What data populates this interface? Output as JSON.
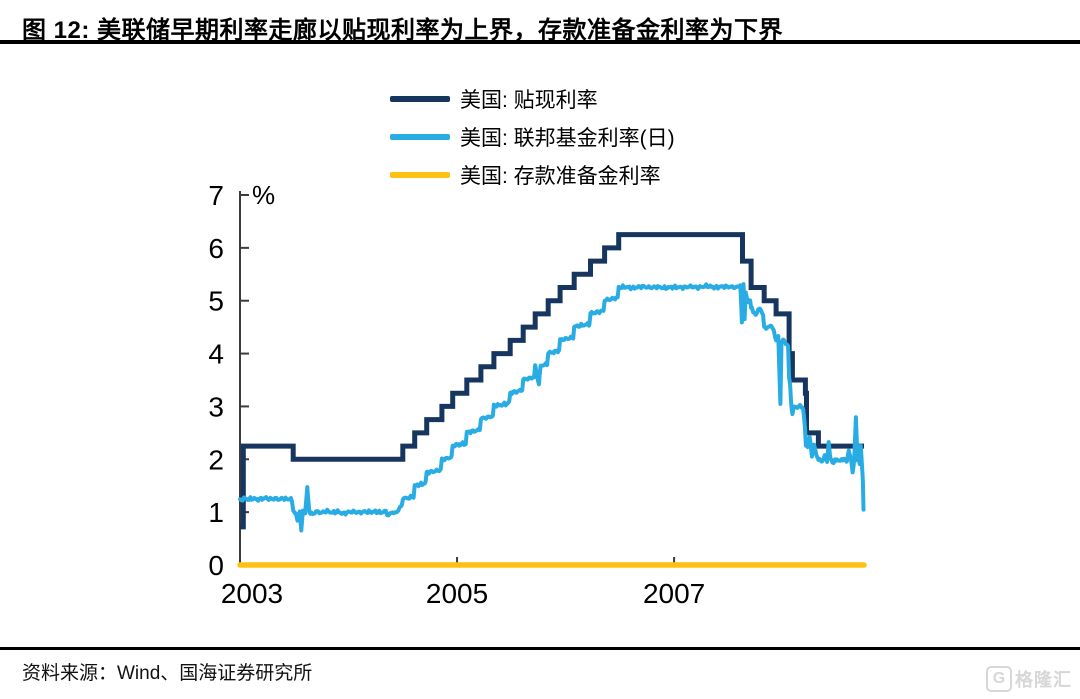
{
  "header": {
    "title": "图 12:  美联储早期利率走廊以贴现利率为上界，存款准备金利率为下界"
  },
  "legend": [
    {
      "label": "美国: 贴现利率",
      "color": "#17365f"
    },
    {
      "label": "美国: 联邦基金利率(日)",
      "color": "#29ace4"
    },
    {
      "label": "美国: 存款准备金利率",
      "color": "#fdc013"
    }
  ],
  "footer": {
    "source": "资料来源：Wind、国海证券研究所"
  },
  "watermark": {
    "icon": "G",
    "text": "格隆汇"
  },
  "chart_data": {
    "type": "line",
    "title": "美联储早期利率走廊以贴现利率为上界，存款准备金利率为下界",
    "ylabel": "%",
    "xlabel": "",
    "ylim": [
      0,
      7
    ],
    "yticks": [
      0,
      1,
      2,
      3,
      4,
      5,
      6,
      7
    ],
    "xlim": [
      2003.0,
      2008.75
    ],
    "xticks": [
      2003,
      2005,
      2007
    ],
    "grid": false,
    "legend_position": "top-center",
    "axis_color": "#3c3c3c",
    "series": [
      {
        "name": "美国: 贴现利率",
        "color": "#17365f",
        "style": "step",
        "width": 5,
        "points": [
          [
            2003.0,
            0.72
          ],
          [
            2003.03,
            2.25
          ],
          [
            2003.49,
            2.0
          ],
          [
            2004.5,
            2.25
          ],
          [
            2004.61,
            2.5
          ],
          [
            2004.72,
            2.75
          ],
          [
            2004.86,
            3.0
          ],
          [
            2004.96,
            3.25
          ],
          [
            2005.09,
            3.5
          ],
          [
            2005.22,
            3.75
          ],
          [
            2005.34,
            4.0
          ],
          [
            2005.49,
            4.25
          ],
          [
            2005.61,
            4.5
          ],
          [
            2005.72,
            4.75
          ],
          [
            2005.84,
            5.0
          ],
          [
            2005.95,
            5.25
          ],
          [
            2006.08,
            5.5
          ],
          [
            2006.23,
            5.75
          ],
          [
            2006.36,
            6.0
          ],
          [
            2006.49,
            6.25
          ],
          [
            2007.63,
            5.75
          ],
          [
            2007.71,
            5.25
          ],
          [
            2007.83,
            5.0
          ],
          [
            2007.94,
            4.75
          ],
          [
            2008.06,
            4.0
          ],
          [
            2008.09,
            3.5
          ],
          [
            2008.21,
            3.25
          ],
          [
            2008.22,
            2.5
          ],
          [
            2008.33,
            2.25
          ],
          [
            2008.75,
            2.25
          ]
        ]
      },
      {
        "name": "美国: 联邦基金利率(日)",
        "color": "#29ace4",
        "style": "line",
        "width": 4,
        "jitter": 0.035,
        "points": [
          [
            2003.0,
            1.22
          ],
          [
            2003.04,
            1.26
          ],
          [
            2003.08,
            1.24
          ],
          [
            2003.12,
            1.26
          ],
          [
            2003.16,
            1.24
          ],
          [
            2003.2,
            1.25
          ],
          [
            2003.24,
            1.27
          ],
          [
            2003.28,
            1.24
          ],
          [
            2003.32,
            1.26
          ],
          [
            2003.36,
            1.24
          ],
          [
            2003.4,
            1.26
          ],
          [
            2003.44,
            1.24
          ],
          [
            2003.47,
            1.26
          ],
          [
            2003.49,
            1.05
          ],
          [
            2003.51,
            0.99
          ],
          [
            2003.53,
            0.84
          ],
          [
            2003.55,
            1.03
          ],
          [
            2003.565,
            0.64
          ],
          [
            2003.58,
            1.02
          ],
          [
            2003.6,
            0.98
          ],
          [
            2003.62,
            1.44
          ],
          [
            2003.64,
            1.0
          ],
          [
            2003.67,
            0.96
          ],
          [
            2003.7,
            1.01
          ],
          [
            2003.75,
            0.99
          ],
          [
            2003.8,
            1.02
          ],
          [
            2003.85,
            0.99
          ],
          [
            2003.9,
            1.01
          ],
          [
            2003.95,
            0.97
          ],
          [
            2004.0,
            1.0
          ],
          [
            2004.05,
            1.01
          ],
          [
            2004.1,
            0.99
          ],
          [
            2004.15,
            1.01
          ],
          [
            2004.2,
            1.0
          ],
          [
            2004.25,
            1.01
          ],
          [
            2004.3,
            0.99
          ],
          [
            2004.34,
            1.02
          ],
          [
            2004.37,
            0.93
          ],
          [
            2004.4,
            1.01
          ],
          [
            2004.43,
            0.97
          ],
          [
            2004.46,
            1.05
          ],
          [
            2004.49,
            1.12
          ],
          [
            2004.5,
            1.26
          ],
          [
            2004.56,
            1.27
          ],
          [
            2004.6,
            1.3
          ],
          [
            2004.61,
            1.5
          ],
          [
            2004.66,
            1.52
          ],
          [
            2004.71,
            1.55
          ],
          [
            2004.72,
            1.75
          ],
          [
            2004.78,
            1.77
          ],
          [
            2004.85,
            1.8
          ],
          [
            2004.86,
            2.0
          ],
          [
            2004.92,
            2.02
          ],
          [
            2004.95,
            2.05
          ],
          [
            2004.96,
            2.26
          ],
          [
            2005.02,
            2.28
          ],
          [
            2005.08,
            2.3
          ],
          [
            2005.09,
            2.51
          ],
          [
            2005.15,
            2.53
          ],
          [
            2005.21,
            2.56
          ],
          [
            2005.22,
            2.77
          ],
          [
            2005.28,
            2.79
          ],
          [
            2005.33,
            2.82
          ],
          [
            2005.34,
            3.01
          ],
          [
            2005.41,
            3.03
          ],
          [
            2005.48,
            3.06
          ],
          [
            2005.49,
            3.26
          ],
          [
            2005.55,
            3.28
          ],
          [
            2005.6,
            3.31
          ],
          [
            2005.61,
            3.51
          ],
          [
            2005.67,
            3.53
          ],
          [
            2005.71,
            3.56
          ],
          [
            2005.72,
            3.76
          ],
          [
            2005.755,
            3.42
          ],
          [
            2005.77,
            3.77
          ],
          [
            2005.83,
            3.8
          ],
          [
            2005.84,
            4.01
          ],
          [
            2005.9,
            4.03
          ],
          [
            2005.94,
            4.06
          ],
          [
            2005.95,
            4.26
          ],
          [
            2006.01,
            4.28
          ],
          [
            2006.07,
            4.31
          ],
          [
            2006.08,
            4.51
          ],
          [
            2006.14,
            4.53
          ],
          [
            2006.22,
            4.56
          ],
          [
            2006.23,
            4.76
          ],
          [
            2006.29,
            4.78
          ],
          [
            2006.35,
            4.81
          ],
          [
            2006.36,
            5.01
          ],
          [
            2006.42,
            5.03
          ],
          [
            2006.48,
            5.06
          ],
          [
            2006.49,
            5.25
          ],
          [
            2006.55,
            5.26
          ],
          [
            2006.62,
            5.24
          ],
          [
            2006.7,
            5.27
          ],
          [
            2006.78,
            5.25
          ],
          [
            2006.85,
            5.26
          ],
          [
            2006.92,
            5.24
          ],
          [
            2007.0,
            5.26
          ],
          [
            2007.08,
            5.25
          ],
          [
            2007.15,
            5.27
          ],
          [
            2007.22,
            5.25
          ],
          [
            2007.3,
            5.28
          ],
          [
            2007.38,
            5.25
          ],
          [
            2007.45,
            5.27
          ],
          [
            2007.52,
            5.26
          ],
          [
            2007.58,
            5.25
          ],
          [
            2007.61,
            5.3
          ],
          [
            2007.625,
            4.58
          ],
          [
            2007.64,
            5.32
          ],
          [
            2007.65,
            4.68
          ],
          [
            2007.66,
            5.15
          ],
          [
            2007.68,
            4.95
          ],
          [
            2007.7,
            5.02
          ],
          [
            2007.71,
            4.88
          ],
          [
            2007.73,
            4.78
          ],
          [
            2007.76,
            4.74
          ],
          [
            2007.79,
            4.88
          ],
          [
            2007.82,
            4.7
          ],
          [
            2007.83,
            4.52
          ],
          [
            2007.86,
            4.47
          ],
          [
            2007.89,
            4.55
          ],
          [
            2007.92,
            4.42
          ],
          [
            2007.94,
            4.25
          ],
          [
            2007.96,
            4.3
          ],
          [
            2007.98,
            3.06
          ],
          [
            2007.99,
            4.22
          ],
          [
            2008.01,
            4.25
          ],
          [
            2008.03,
            4.2
          ],
          [
            2008.05,
            4.15
          ],
          [
            2008.06,
            3.52
          ],
          [
            2008.07,
            3.4
          ],
          [
            2008.08,
            3.02
          ],
          [
            2008.09,
            2.86
          ],
          [
            2008.11,
            3.0
          ],
          [
            2008.14,
            2.98
          ],
          [
            2008.17,
            3.02
          ],
          [
            2008.19,
            2.95
          ],
          [
            2008.205,
            2.6
          ],
          [
            2008.215,
            2.28
          ],
          [
            2008.23,
            2.24
          ],
          [
            2008.25,
            2.42
          ],
          [
            2008.27,
            2.08
          ],
          [
            2008.29,
            2.26
          ],
          [
            2008.31,
            2.1
          ],
          [
            2008.33,
            2.0
          ],
          [
            2008.36,
            1.96
          ],
          [
            2008.39,
            2.06
          ],
          [
            2008.41,
            1.97
          ],
          [
            2008.425,
            2.32
          ],
          [
            2008.44,
            2.0
          ],
          [
            2008.47,
            1.94
          ],
          [
            2008.5,
            2.0
          ],
          [
            2008.53,
            1.96
          ],
          [
            2008.56,
            2.02
          ],
          [
            2008.59,
            1.95
          ],
          [
            2008.61,
            2.18
          ],
          [
            2008.63,
            1.98
          ],
          [
            2008.645,
            1.76
          ],
          [
            2008.66,
            2.0
          ],
          [
            2008.675,
            2.78
          ],
          [
            2008.69,
            1.98
          ],
          [
            2008.7,
            2.1
          ],
          [
            2008.71,
            1.9
          ],
          [
            2008.72,
            2.24
          ],
          [
            2008.73,
            1.92
          ],
          [
            2008.74,
            1.6
          ],
          [
            2008.745,
            1.05
          ]
        ]
      },
      {
        "name": "美国: 存款准备金利率",
        "color": "#fdc013",
        "style": "line",
        "width": 5.5,
        "points": [
          [
            2003.0,
            0.0
          ],
          [
            2008.75,
            0.0
          ]
        ]
      }
    ]
  }
}
